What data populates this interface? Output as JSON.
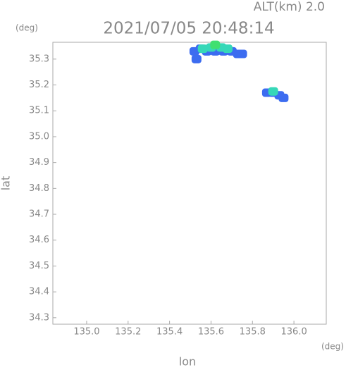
{
  "chart_data": {
    "type": "scatter",
    "title": "2021/07/05 20:48:14",
    "subtitle": "ALT(km) 2.0",
    "xlabel": "lon",
    "ylabel": "lat",
    "xunit": "(deg)",
    "yunit": "(deg)",
    "xlim": [
      134.837,
      136.156
    ],
    "ylim": [
      34.275,
      35.365
    ],
    "xticks": [
      {
        "value": 135,
        "label": "135.0"
      },
      135.2,
      135.4,
      135.6,
      135.8,
      {
        "value": 136,
        "label": "136.0"
      }
    ],
    "yticks": [
      34.3,
      34.4,
      34.5,
      34.6,
      34.7,
      34.8,
      34.9,
      {
        "value": 35,
        "label": "35.0"
      },
      35.1,
      35.2,
      35.3
    ],
    "series": [
      {
        "color": "#3c6cf0",
        "x": [
          135.52,
          135.55,
          135.58,
          135.62,
          135.66,
          135.7,
          135.73,
          135.75,
          135.53,
          135.87,
          135.9,
          135.93,
          135.95
        ],
        "values": [
          35.33,
          35.34,
          35.33,
          35.33,
          35.33,
          35.33,
          35.32,
          35.32,
          35.3,
          35.17,
          35.17,
          35.16,
          35.15
        ]
      },
      {
        "color": "#36d8b8",
        "x": [
          135.56,
          135.6,
          135.65,
          135.68,
          135.9
        ],
        "values": [
          35.34,
          35.345,
          35.345,
          35.34,
          35.175
        ]
      },
      {
        "color": "#40e070",
        "x": [
          135.62
        ],
        "values": [
          35.355
        ]
      }
    ]
  }
}
